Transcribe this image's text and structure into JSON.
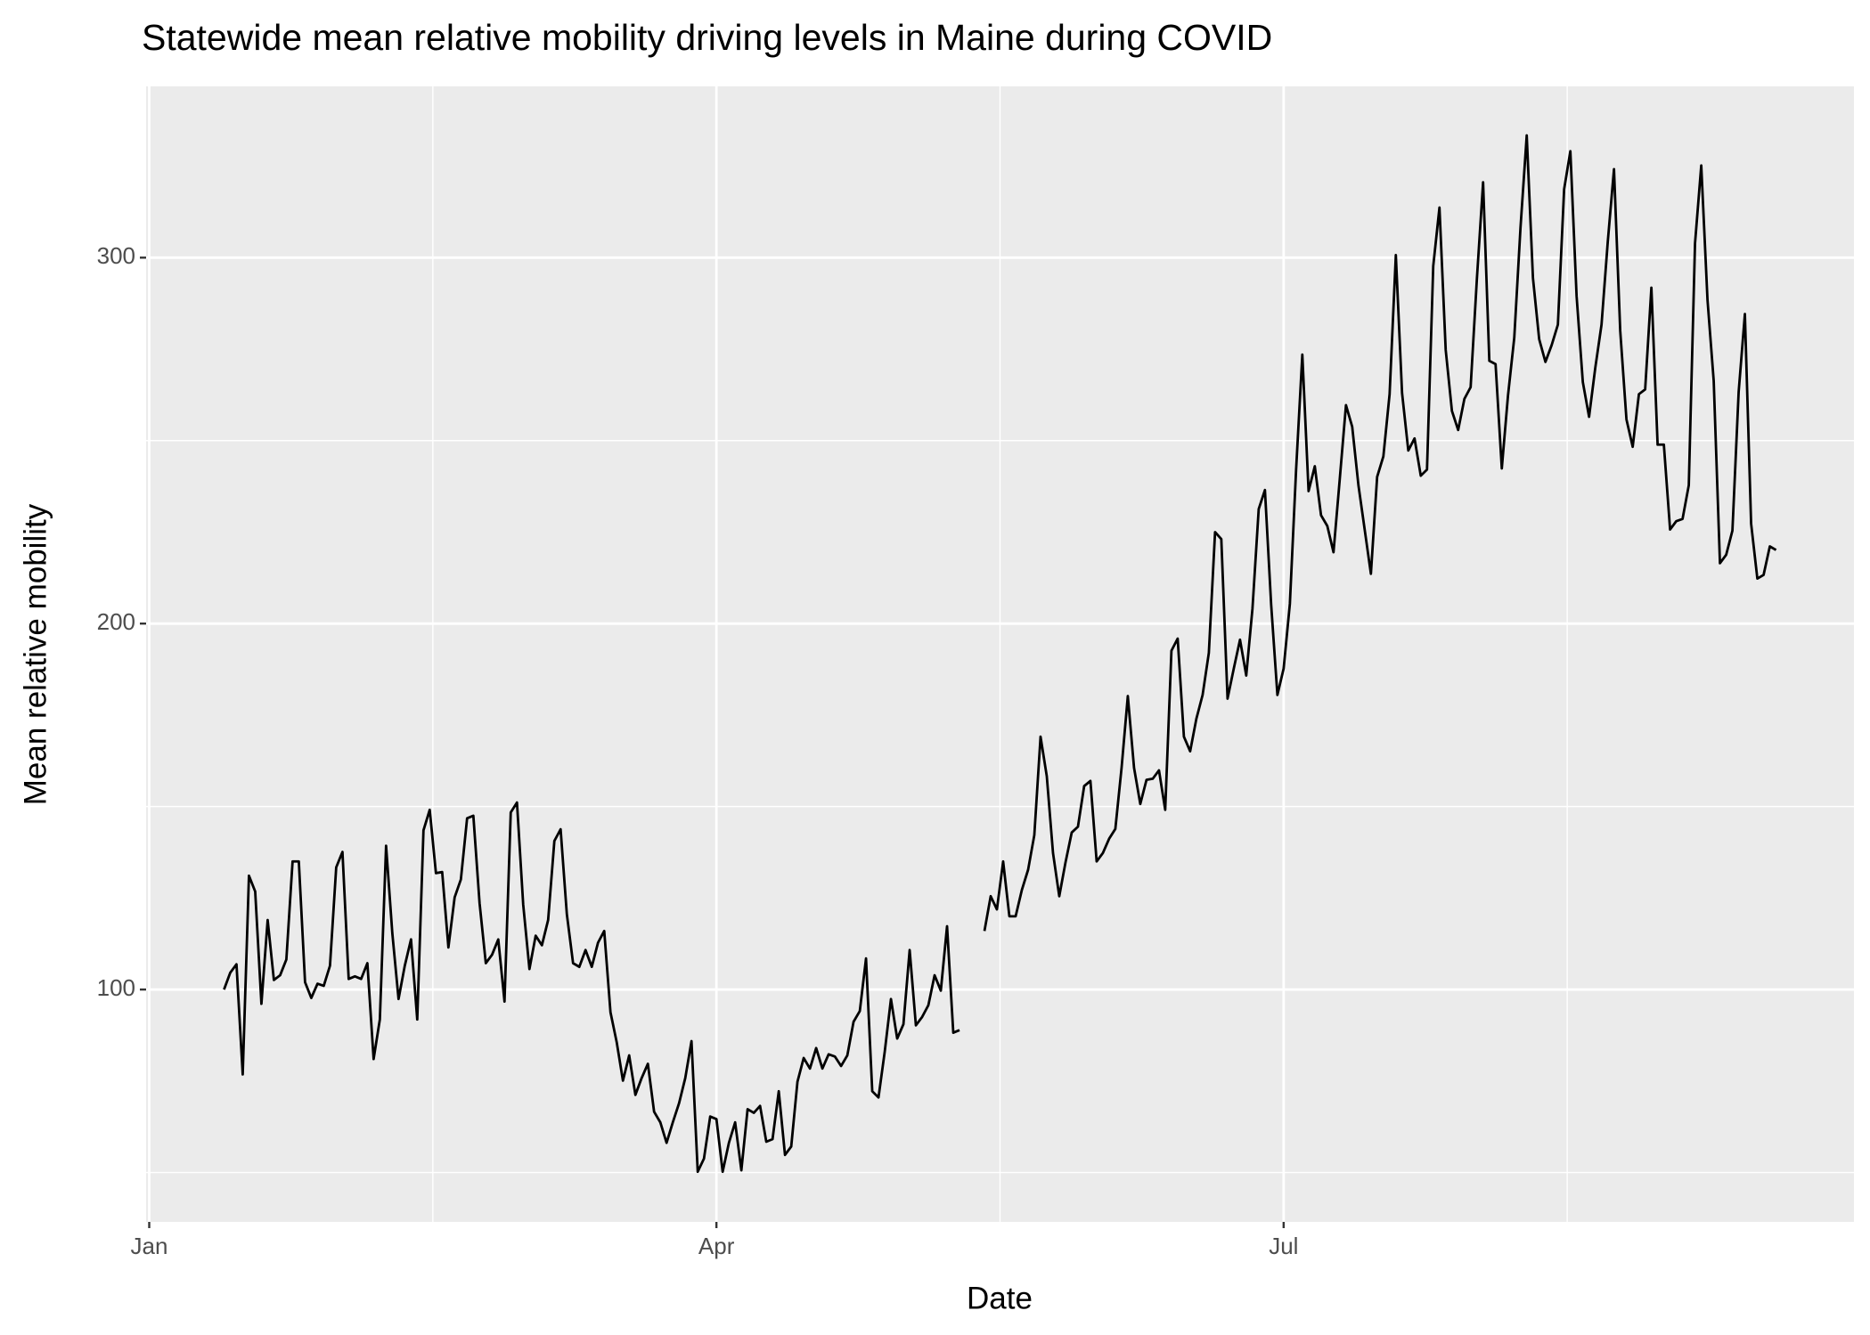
{
  "chart_data": {
    "type": "line",
    "title": "Statewide mean relative mobility driving levels in Maine during COVID",
    "x_label": "Date",
    "y_label": "Mean relative mobility",
    "color": "#000000",
    "grid": true,
    "xlim": [
      -0.5,
      273.5
    ],
    "xticks": [
      {
        "value": 0,
        "label": "Jan"
      },
      {
        "value": 91,
        "label": "Apr"
      },
      {
        "value": 182,
        "label": "Jul"
      }
    ],
    "ylim": [
      36.5,
      346.8
    ],
    "yticks": [
      100,
      200,
      300
    ],
    "x": [
      12,
      13,
      14,
      15,
      16,
      17,
      18,
      19,
      20,
      21,
      22,
      23,
      24,
      25,
      26,
      27,
      28,
      29,
      30,
      31,
      32,
      33,
      34,
      35,
      36,
      37,
      38,
      39,
      40,
      41,
      42,
      43,
      44,
      45,
      46,
      47,
      48,
      49,
      50,
      51,
      52,
      53,
      54,
      55,
      56,
      57,
      58,
      59,
      60,
      61,
      62,
      63,
      64,
      65,
      66,
      67,
      68,
      69,
      70,
      71,
      72,
      73,
      74,
      75,
      76,
      77,
      78,
      79,
      80,
      81,
      82,
      83,
      84,
      85,
      86,
      87,
      88,
      89,
      90,
      91,
      92,
      93,
      94,
      95,
      96,
      97,
      98,
      99,
      100,
      101,
      102,
      103,
      104,
      105,
      106,
      107,
      108,
      109,
      110,
      111,
      112,
      113,
      114,
      115,
      116,
      117,
      118,
      119,
      120,
      121,
      122,
      123,
      124,
      125,
      126,
      127,
      128,
      129,
      130,
      131,
      132,
      133,
      134,
      135,
      136,
      137,
      138,
      139,
      140,
      141,
      142,
      143,
      144,
      145,
      146,
      147,
      148,
      149,
      150,
      151,
      152,
      153,
      154,
      155,
      156,
      157,
      158,
      159,
      160,
      161,
      162,
      163,
      164,
      165,
      166,
      167,
      168,
      169,
      170,
      171,
      172,
      173,
      174,
      175,
      176,
      177,
      178,
      179,
      180,
      181,
      182,
      183,
      184,
      185,
      186,
      187,
      188,
      189,
      190,
      191,
      192,
      193,
      194,
      195,
      196,
      197,
      198,
      199,
      200,
      201,
      202,
      203,
      204,
      205,
      206,
      207,
      208,
      209,
      210,
      211,
      212,
      213,
      214,
      215,
      216,
      217,
      218,
      219,
      220,
      221,
      222,
      223,
      224,
      225,
      226,
      227,
      228,
      229,
      230,
      231,
      232,
      233,
      234,
      235,
      236,
      237,
      238,
      239,
      240,
      241,
      242,
      243,
      244,
      245,
      246,
      247,
      248,
      249,
      250,
      251,
      252,
      253,
      254,
      255,
      256,
      257,
      258,
      259,
      260,
      261
    ],
    "values": [
      100,
      104.6,
      106.9,
      76.8,
      131.1,
      126.8,
      96.1,
      119.0,
      102.6,
      103.9,
      108.2,
      135.0,
      135.0,
      102.0,
      97.7,
      101.6,
      101.0,
      106.5,
      133.4,
      137.6,
      102.9,
      103.6,
      102.9,
      107.2,
      81.0,
      91.8,
      139.3,
      115.4,
      97.4,
      106.5,
      113.7,
      91.8,
      143.5,
      149.1,
      131.8,
      132.1,
      111.5,
      125.2,
      130.1,
      146.8,
      147.5,
      123.6,
      107.2,
      109.5,
      113.7,
      96.7,
      148.4,
      151.1,
      123.2,
      105.6,
      114.7,
      112.1,
      119.0,
      140.6,
      143.8,
      120.6,
      107.2,
      106.2,
      110.8,
      106.2,
      112.8,
      116.0,
      93.8,
      85.6,
      75.1,
      82.0,
      71.2,
      75.8,
      79.7,
      66.6,
      63.7,
      58.1,
      63.7,
      68.9,
      75.8,
      85.9,
      50.2,
      53.8,
      65.3,
      64.6,
      50.2,
      58.1,
      63.7,
      50.6,
      67.3,
      66.3,
      68.2,
      58.4,
      59.1,
      72.2,
      54.8,
      57.1,
      74.8,
      81.3,
      78.4,
      84.0,
      78.4,
      82.3,
      81.7,
      79.1,
      82.0,
      91.2,
      94.1,
      108.5,
      72.2,
      70.5,
      83.0,
      97.4,
      86.6,
      90.5,
      110.8,
      90.2,
      92.5,
      95.7,
      103.9,
      99.7,
      117.3,
      88.2,
      88.9,
      null,
      null,
      null,
      116.0,
      125.5,
      121.9,
      135.0,
      120.0,
      120.0,
      127.2,
      132.7,
      142.2,
      169.1,
      158.3,
      137.3,
      125.5,
      134.7,
      142.9,
      144.5,
      155.6,
      157.0,
      135.0,
      137.3,
      141.2,
      143.9,
      160.6,
      180.2,
      160.6,
      150.7,
      157.3,
      157.6,
      159.9,
      149.1,
      192.6,
      195.9,
      169.1,
      165.1,
      174.0,
      180.5,
      192.0,
      225.0,
      223.1,
      179.5,
      187.7,
      195.6,
      185.8,
      204.1,
      231.3,
      236.5,
      205.1,
      180.5,
      187.7,
      205.4,
      242.1,
      273.5,
      236.2,
      243.0,
      229.6,
      226.7,
      219.5,
      239.4,
      259.7,
      253.8,
      237.8,
      225.7,
      213.6,
      240.1,
      245.7,
      262.7,
      300.7,
      263.0,
      247.3,
      250.6,
      240.4,
      242.1,
      297.7,
      313.7,
      274.8,
      258.1,
      252.9,
      261.4,
      264.6,
      294.1,
      320.6,
      271.8,
      270.9,
      242.4,
      262.4,
      278.1,
      308.2,
      333.4,
      294.4,
      277.7,
      271.5,
      276.1,
      281.7,
      318.7,
      329.1,
      289.5,
      266.0,
      256.5,
      269.9,
      281.7,
      304.3,
      324.2,
      280.0,
      255.8,
      248.3,
      262.7,
      264.0,
      291.8,
      248.9,
      248.9,
      225.7,
      228.0,
      228.6,
      237.8,
      303.9,
      325.2,
      288.5,
      266.3,
      216.5,
      218.8,
      225.4,
      263.3,
      284.6,
      227.3,
      212.3,
      213.3,
      221.1,
      220.1
    ]
  }
}
